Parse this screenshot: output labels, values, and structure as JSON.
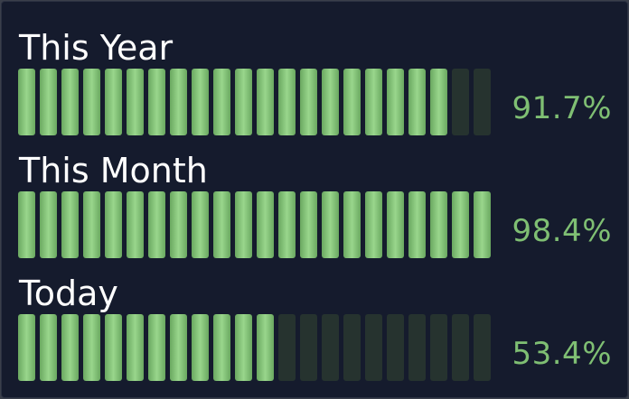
{
  "colors": {
    "background": "#151b2d",
    "segment_on": "#8cc97f",
    "segment_off": "#26332f",
    "label_text": "#ffffff",
    "percent_text": "#7fbf73"
  },
  "segments_per_bar": 22,
  "gauges": [
    {
      "label": "This Year",
      "percent_text": "91.7%",
      "value": 91.7
    },
    {
      "label": "This Month",
      "percent_text": "98.4%",
      "value": 98.4
    },
    {
      "label": "Today",
      "percent_text": "53.4%",
      "value": 53.4
    }
  ]
}
